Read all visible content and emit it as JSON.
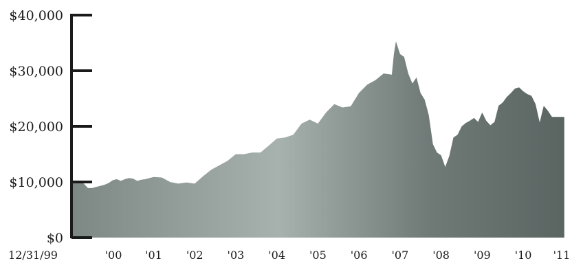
{
  "chart_data": {
    "type": "area",
    "title": "",
    "xlabel": "",
    "ylabel": "",
    "ylim": [
      0,
      40000
    ],
    "grid": false,
    "legend": "none",
    "y_ticks": [
      {
        "value": 0,
        "label": "$0"
      },
      {
        "value": 10000,
        "label": "$10,000"
      },
      {
        "value": 20000,
        "label": "$20,000"
      },
      {
        "value": 30000,
        "label": "$30,000"
      },
      {
        "value": 40000,
        "label": "$40,000"
      }
    ],
    "x_ticks": [
      {
        "x": 1999.99,
        "label": "12/31/99"
      },
      {
        "x": 2000.0,
        "label": "'00"
      },
      {
        "x": 2001.0,
        "label": "'01"
      },
      {
        "x": 2002.0,
        "label": "'02"
      },
      {
        "x": 2003.0,
        "label": "'03"
      },
      {
        "x": 2004.0,
        "label": "'04"
      },
      {
        "x": 2005.0,
        "label": "'05"
      },
      {
        "x": 2006.0,
        "label": "'06"
      },
      {
        "x": 2007.0,
        "label": "'07"
      },
      {
        "x": 2008.0,
        "label": "'08"
      },
      {
        "x": 2009.0,
        "label": "'09"
      },
      {
        "x": 2010.0,
        "label": "'10"
      },
      {
        "x": 2011.0,
        "label": "'11"
      }
    ],
    "xlim": [
      1999.0,
      2011.02
    ],
    "colors": {
      "area_dark": "#5a6562",
      "area_light": "#a7b1ae",
      "axis": "#1a1a1a"
    },
    "series": [
      {
        "x": [
          1999.0,
          1999.1,
          1999.2,
          1999.3,
          1999.4,
          1999.5,
          1999.6,
          1999.7,
          1999.8,
          1999.9,
          2000.0,
          2000.1,
          2000.2,
          2000.3,
          2000.4,
          2000.5,
          2000.6,
          2000.7,
          2000.8,
          2000.9,
          2001.0,
          2001.2,
          2001.4,
          2001.6,
          2001.8,
          2002.0,
          2002.2,
          2002.4,
          2002.6,
          2002.8,
          2003.0,
          2003.2,
          2003.4,
          2003.6,
          2003.8,
          2004.0,
          2004.2,
          2004.4,
          2004.6,
          2004.8,
          2005.0,
          2005.2,
          2005.4,
          2005.6,
          2005.8,
          2006.0,
          2006.2,
          2006.4,
          2006.6,
          2006.8,
          2006.85,
          2006.9,
          2007.0,
          2007.1,
          2007.2,
          2007.3,
          2007.4,
          2007.5,
          2007.6,
          2007.7,
          2007.8,
          2007.9,
          2008.0,
          2008.1,
          2008.2,
          2008.3,
          2008.4,
          2008.5,
          2008.6,
          2008.7,
          2008.8,
          2008.9,
          2009.0,
          2009.1,
          2009.2,
          2009.3,
          2009.4,
          2009.5,
          2009.6,
          2009.7,
          2009.8,
          2009.9,
          2010.0,
          2010.1,
          2010.2,
          2010.3,
          2010.4,
          2010.5,
          2010.6,
          2010.7,
          2010.75,
          2010.8,
          2010.9,
          2011.0
        ],
        "values": [
          10000,
          9900,
          10000,
          9700,
          8900,
          8900,
          9100,
          9300,
          9500,
          9800,
          10300,
          10500,
          10200,
          10500,
          10700,
          10600,
          10200,
          10400,
          10500,
          10700,
          10900,
          10800,
          10000,
          9700,
          9900,
          9700,
          11000,
          12200,
          13000,
          13800,
          15000,
          15000,
          15300,
          15300,
          16500,
          17800,
          18000,
          18500,
          20500,
          21200,
          20500,
          22500,
          24000,
          23400,
          23600,
          26000,
          27500,
          28300,
          29500,
          29300,
          33000,
          35300,
          33000,
          32500,
          29500,
          27700,
          28800,
          26000,
          24800,
          22000,
          16800,
          15300,
          14800,
          12700,
          14700,
          18000,
          18500,
          20000,
          20600,
          21000,
          21500,
          20800,
          22500,
          21000,
          20200,
          20800,
          23700,
          24300,
          25300,
          26000,
          26800,
          27000,
          26300,
          25800,
          25500,
          24000,
          20700,
          23700,
          22800,
          21700,
          21700,
          21700,
          21700,
          21700
        ]
      }
    ]
  }
}
